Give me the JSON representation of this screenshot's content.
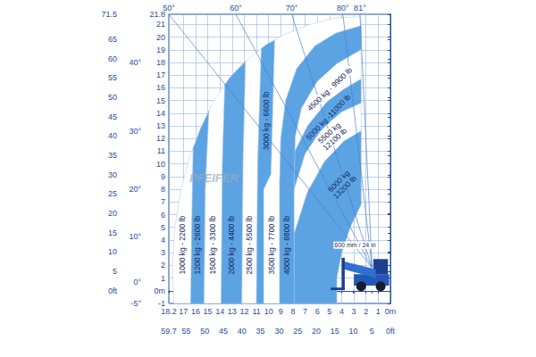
{
  "chart_data": {
    "type": "polygon",
    "grid": true,
    "xlim": [
      18.2,
      0
    ],
    "xticks": [
      18.2,
      17,
      16,
      15,
      14,
      13,
      12,
      11,
      10,
      9,
      8,
      7,
      6,
      5,
      4,
      3,
      2,
      1,
      {
        "value": 0,
        "label": "0m"
      }
    ],
    "ylim": [
      -1,
      21.8
    ],
    "yticks": [
      -1,
      {
        "value": 0,
        "label": "0m"
      },
      1,
      2,
      3,
      4,
      5,
      6,
      7,
      8,
      9,
      10,
      11,
      12,
      13,
      14,
      15,
      16,
      17,
      18,
      19,
      20,
      21,
      21.8
    ],
    "x2lim": [
      59.7,
      0
    ],
    "x2ticks": [
      59.7,
      55,
      50,
      45,
      40,
      35,
      30,
      25,
      20,
      15,
      10,
      5,
      {
        "value": 0,
        "label": "0ft"
      }
    ],
    "y2lim": [
      -3.28,
      71.5
    ],
    "y2ticks": [
      {
        "value": 0,
        "label": "0ft"
      },
      5,
      10,
      15,
      20,
      25,
      30,
      35,
      40,
      45,
      50,
      55,
      60,
      65,
      71.5
    ],
    "angle_ticks_top": [
      {
        "value": 18.2,
        "label": "50°"
      },
      {
        "value": 12.7,
        "label": "60°"
      },
      {
        "value": 8.1,
        "label": "70°"
      },
      {
        "value": 3.9,
        "label": "80°"
      },
      {
        "value": 2.5,
        "label": "81°"
      }
    ],
    "angle_ticks_left": [
      {
        "value": -1,
        "label": "-5°"
      },
      {
        "value": 0.7,
        "label": "0°"
      },
      {
        "value": 4.3,
        "label": "10°"
      },
      {
        "value": 8.0,
        "label": "20°"
      },
      {
        "value": 12.6,
        "label": "30°"
      },
      {
        "value": 18,
        "label": "40°"
      }
    ],
    "boom_pivot": [
      1.5,
      1.8
    ],
    "zones": [
      {
        "name": "1000 kg - 2200 lb",
        "color": "#ffffff",
        "polygon": [
          [
            17.8,
            -1
          ],
          [
            17.9,
            2
          ],
          [
            17.7,
            5
          ],
          [
            17.2,
            8
          ],
          [
            16.5,
            10.5
          ],
          [
            16.2,
            11.27
          ],
          [
            16.3,
            6
          ],
          [
            16.4,
            -1
          ]
        ]
      },
      {
        "name": "1200 kg - 2600 lb",
        "color": "#5ba3e3",
        "polygon": [
          [
            16.4,
            -1
          ],
          [
            16.3,
            6
          ],
          [
            16.2,
            11.27
          ],
          [
            15.6,
            12.8
          ],
          [
            14.9,
            14.2
          ],
          [
            15.2,
            8
          ],
          [
            15.3,
            -1
          ]
        ]
      },
      {
        "name": "1500 kg - 3300 lb",
        "color": "#ffffff",
        "polygon": [
          [
            15.3,
            -1
          ],
          [
            15.2,
            8
          ],
          [
            14.9,
            14.2
          ],
          [
            14.5,
            15
          ],
          [
            13.6,
            16.25
          ],
          [
            13.8,
            10
          ],
          [
            13.9,
            -1
          ]
        ]
      },
      {
        "name": "2000 kg - 4400 lb",
        "color": "#5ba3e3",
        "polygon": [
          [
            13.9,
            -1
          ],
          [
            13.8,
            10
          ],
          [
            13.6,
            16.25
          ],
          [
            13.2,
            16.8
          ],
          [
            11.9,
            18.1
          ],
          [
            12.1,
            10
          ],
          [
            12.2,
            -1
          ]
        ]
      },
      {
        "name": "2500 kg - 5500 lb",
        "color": "#ffffff",
        "polygon": [
          [
            12.2,
            -1
          ],
          [
            12.1,
            10
          ],
          [
            11.9,
            18.1
          ],
          [
            11.8,
            18.2
          ],
          [
            10.6,
            19.1
          ],
          [
            10.9,
            10
          ],
          [
            11.0,
            -1
          ]
        ]
      },
      {
        "name": "3000 kg - 6600 lb",
        "color": "#5ba3e3",
        "polygon": [
          [
            11.0,
            -1
          ],
          [
            10.9,
            10
          ],
          [
            10.6,
            19.1
          ],
          [
            10.2,
            19.4
          ],
          [
            9.5,
            19.77
          ],
          [
            9.8,
            9.2
          ],
          [
            10.4,
            8
          ],
          [
            10.4,
            -1
          ]
        ]
      },
      {
        "name": "3500 kg - 7700 lb",
        "color": "#ffffff",
        "polygon": [
          [
            10.4,
            -1
          ],
          [
            10.4,
            8
          ],
          [
            9.8,
            9.2
          ],
          [
            9.5,
            19.77
          ],
          [
            8.5,
            20.3
          ],
          [
            6.6,
            21.0
          ],
          [
            4.6,
            21.5
          ],
          [
            2.4,
            21.6
          ],
          [
            2.4,
            20.9
          ],
          [
            4.5,
            20.3
          ],
          [
            6.2,
            19.3
          ],
          [
            7.7,
            17.5
          ],
          [
            8.6,
            15
          ],
          [
            9.0,
            12
          ],
          [
            9.1,
            8.5
          ],
          [
            9.1,
            -1
          ]
        ]
      },
      {
        "name": "4000 kg - 8800 lb",
        "color": "#5ba3e3",
        "polygon": [
          [
            9.1,
            -1
          ],
          [
            9.1,
            8.5
          ],
          [
            9.0,
            12
          ],
          [
            8.6,
            15
          ],
          [
            7.7,
            17.5
          ],
          [
            6.2,
            19.3
          ],
          [
            4.5,
            20.3
          ],
          [
            2.4,
            20.9
          ],
          [
            2.4,
            19.0
          ],
          [
            4.4,
            17.9
          ],
          [
            6.0,
            16.5
          ],
          [
            7.3,
            14.4
          ],
          [
            7.8,
            12.2
          ],
          [
            7.9,
            9
          ],
          [
            7.9,
            -1
          ]
        ]
      },
      {
        "name": "4500 kg - 9900 lb",
        "color": "#ffffff",
        "polygon": [
          [
            7.84,
            11.0
          ],
          [
            7.8,
            12.2
          ],
          [
            7.3,
            14.4
          ],
          [
            6.0,
            16.5
          ],
          [
            4.4,
            17.9
          ],
          [
            2.4,
            19.0
          ],
          [
            2.4,
            16.7
          ],
          [
            3.8,
            15.9
          ],
          [
            5.2,
            14.9
          ],
          [
            6.8,
            13.0
          ]
        ]
      },
      {
        "name": "5000 kg -11000 lb",
        "color": "#5ba3e3",
        "polygon": [
          [
            7.9,
            8.0
          ],
          [
            7.9,
            9
          ],
          [
            7.84,
            11.0
          ],
          [
            6.8,
            13.0
          ],
          [
            5.2,
            14.9
          ],
          [
            3.8,
            15.9
          ],
          [
            2.4,
            16.7
          ],
          [
            2.4,
            14.8
          ],
          [
            4.0,
            14.1
          ],
          [
            5.6,
            12.8
          ],
          [
            7.0,
            10.8
          ]
        ]
      },
      {
        "name": "5500 kg 12100 lb",
        "color": "#ffffff",
        "polygon": [
          [
            7.9,
            4.5
          ],
          [
            7.9,
            8.0
          ],
          [
            7.0,
            10.8
          ],
          [
            5.6,
            12.8
          ],
          [
            4.0,
            14.1
          ],
          [
            2.4,
            14.8
          ],
          [
            2.4,
            12.6
          ],
          [
            3.8,
            11.8
          ],
          [
            5.4,
            10.2
          ],
          [
            6.8,
            7.8
          ]
        ]
      },
      {
        "name": "6000 kg 13200 lb",
        "color": "#5ba3e3",
        "polygon": [
          [
            7.9,
            -1
          ],
          [
            7.9,
            4.5
          ],
          [
            6.8,
            7.8
          ],
          [
            5.4,
            10.2
          ],
          [
            3.8,
            11.8
          ],
          [
            2.4,
            12.6
          ],
          [
            2.4,
            6.8
          ],
          [
            3.3,
            5.0
          ],
          [
            4.0,
            3.0
          ],
          [
            4.4,
            1.0
          ],
          [
            4.4,
            -1
          ]
        ]
      }
    ],
    "annotations": [
      "600 mm / 24 in"
    ],
    "watermark": "PFEIFER"
  }
}
